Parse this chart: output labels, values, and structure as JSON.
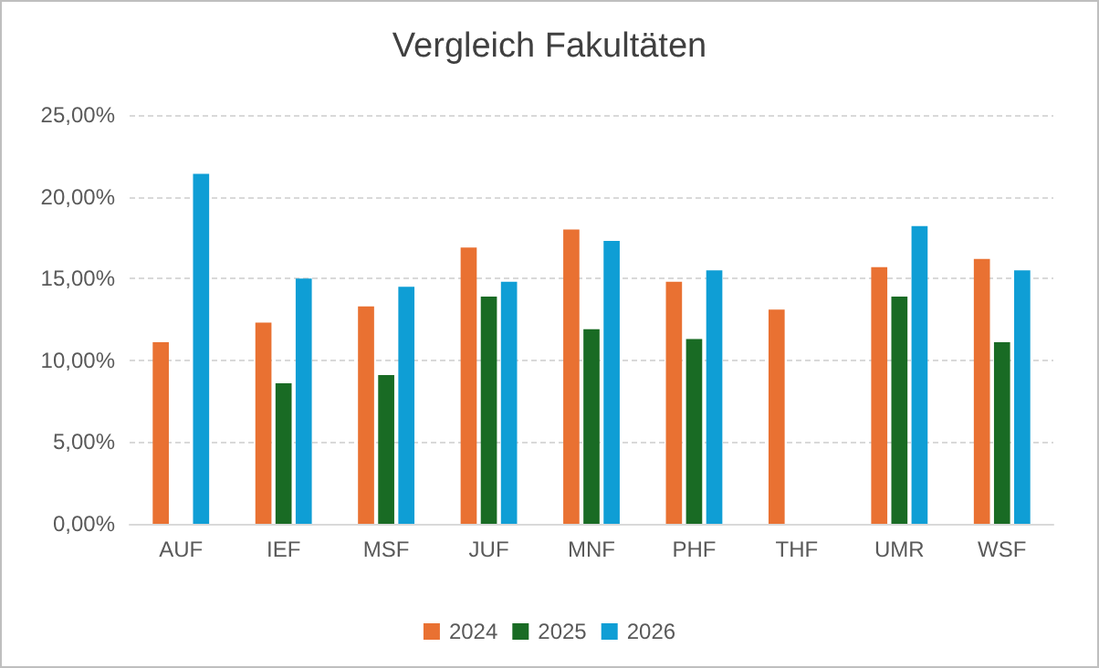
{
  "chart_data": {
    "type": "bar",
    "title": "Vergleich Fakultäten",
    "categories": [
      "AUF",
      "IEF",
      "MSF",
      "JUF",
      "MNF",
      "PHF",
      "THF",
      "UMR",
      "WSF"
    ],
    "series": [
      {
        "name": "2024",
        "color": "#e97132",
        "values": [
          11.1,
          12.3,
          13.3,
          16.9,
          18.0,
          14.8,
          13.1,
          15.7,
          16.2
        ]
      },
      {
        "name": "2025",
        "color": "#196b24",
        "values": [
          null,
          8.6,
          9.1,
          13.9,
          11.9,
          11.3,
          null,
          13.9,
          11.1
        ]
      },
      {
        "name": "2026",
        "color": "#0f9ed5",
        "values": [
          21.4,
          15.0,
          14.5,
          14.8,
          17.3,
          15.5,
          null,
          18.2,
          15.5
        ]
      }
    ],
    "ylim": [
      0,
      25
    ],
    "yticks": [
      {
        "value": 0,
        "label": "0,00%"
      },
      {
        "value": 5,
        "label": "5,00%"
      },
      {
        "value": 10,
        "label": "10,00%"
      },
      {
        "value": 15,
        "label": "15,00%"
      },
      {
        "value": 20,
        "label": "20,00%"
      },
      {
        "value": 25,
        "label": "25,00%"
      }
    ],
    "grid": "y",
    "legend": "bottom"
  }
}
